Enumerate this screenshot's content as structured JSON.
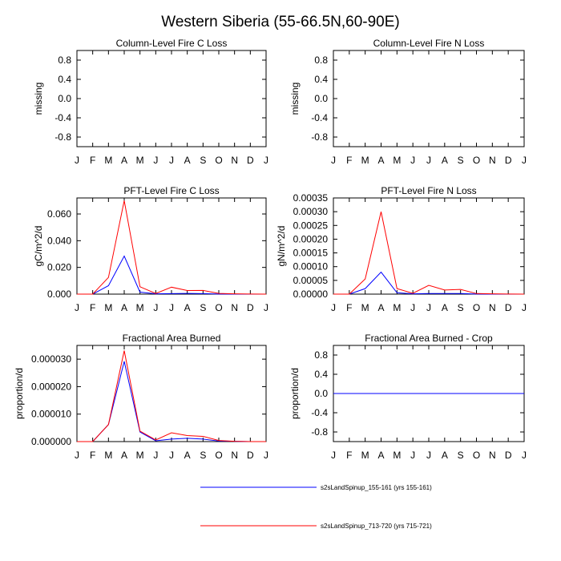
{
  "figure": {
    "title": "Western Siberia (55-66.5N,60-90E)",
    "month_labels": [
      "J",
      "F",
      "M",
      "A",
      "M",
      "J",
      "J",
      "A",
      "S",
      "O",
      "N",
      "D",
      "J"
    ]
  },
  "legend": [
    {
      "label": "s2sLandSpinup_155-161 (yrs 155-161)",
      "color": "#0000ff"
    },
    {
      "label": "s2sLandSpinup_713-720 (yrs 715-721)",
      "color": "#ff0000"
    }
  ],
  "chart_data": [
    {
      "type": "line",
      "title": "Column-Level Fire C Loss",
      "ylabel": "missing",
      "ylim": [
        -1,
        1
      ],
      "yticks": [
        -0.8,
        -0.4,
        0.0,
        0.4,
        0.8
      ],
      "ytick_labels": [
        "-0.8",
        "-0.4",
        "0.0",
        "0.4",
        "0.8"
      ],
      "x": [
        1,
        2,
        3,
        4,
        5,
        6,
        7,
        8,
        9,
        10,
        11,
        12,
        13
      ],
      "series": []
    },
    {
      "type": "line",
      "title": "Column-Level Fire N Loss",
      "ylabel": "missing",
      "ylim": [
        -1,
        1
      ],
      "yticks": [
        -0.8,
        -0.4,
        0.0,
        0.4,
        0.8
      ],
      "ytick_labels": [
        "-0.8",
        "-0.4",
        "0.0",
        "0.4",
        "0.8"
      ],
      "x": [
        1,
        2,
        3,
        4,
        5,
        6,
        7,
        8,
        9,
        10,
        11,
        12,
        13
      ],
      "series": []
    },
    {
      "type": "line",
      "title": "PFT-Level Fire C Loss",
      "ylabel": "gC/m^2/d",
      "ylim": [
        0,
        0.072
      ],
      "yticks": [
        0,
        0.02,
        0.04,
        0.06
      ],
      "ytick_labels": [
        "0.000",
        "0.020",
        "0.040",
        "0.060"
      ],
      "x": [
        1,
        2,
        3,
        4,
        5,
        6,
        7,
        8,
        9,
        10,
        11,
        12,
        13
      ],
      "series": [
        {
          "name": "s2sLandSpinup_155-161",
          "color": "#0000ff",
          "values": [
            0,
            0,
            0.0063,
            0.0285,
            0.0015,
            0.0002,
            0.0004,
            0.0005,
            0.0004,
            0.0001,
            0.0,
            0.0,
            0.0
          ]
        },
        {
          "name": "s2sLandSpinup_713-720",
          "color": "#ff0000",
          "values": [
            0,
            0,
            0.0125,
            0.07,
            0.0055,
            0.0005,
            0.0052,
            0.0027,
            0.0028,
            0.0005,
            0.0002,
            0.0001,
            0.0
          ]
        }
      ]
    },
    {
      "type": "line",
      "title": "PFT-Level Fire N Loss",
      "ylabel": "gN/m^2/d",
      "ylim": [
        0,
        0.00035
      ],
      "yticks": [
        0,
        5e-05,
        0.0001,
        0.00015,
        0.0002,
        0.00025,
        0.0003,
        0.00035
      ],
      "ytick_labels": [
        "0.00000",
        "0.00005",
        "0.00010",
        "0.00015",
        "0.00020",
        "0.00025",
        "0.00030",
        "0.00035"
      ],
      "x": [
        1,
        2,
        3,
        4,
        5,
        6,
        7,
        8,
        9,
        10,
        11,
        12,
        13
      ],
      "series": [
        {
          "name": "s2sLandSpinup_155-161",
          "color": "#0000ff",
          "values": [
            0,
            0,
            2e-05,
            8e-05,
            5e-06,
            1e-06,
            2e-06,
            2e-06,
            2e-06,
            5e-07,
            0,
            0,
            0
          ]
        },
        {
          "name": "s2sLandSpinup_713-720",
          "color": "#ff0000",
          "values": [
            0,
            0,
            5.5e-05,
            0.0003,
            2e-05,
            3e-06,
            3.2e-05,
            1.5e-05,
            1.7e-05,
            2e-06,
            1e-06,
            5e-07,
            0
          ]
        }
      ]
    },
    {
      "type": "line",
      "title": "Fractional Area Burned",
      "ylabel": "proportion/d",
      "ylim": [
        0,
        3.5e-05
      ],
      "yticks": [
        0,
        1e-05,
        2e-05,
        3e-05
      ],
      "ytick_labels": [
        "0.000000",
        "0.000010",
        "0.000020",
        "0.000030"
      ],
      "x": [
        1,
        2,
        3,
        4,
        5,
        6,
        7,
        8,
        9,
        10,
        11,
        12,
        13
      ],
      "series": [
        {
          "name": "s2sLandSpinup_155-161",
          "color": "#0000ff",
          "values": [
            0,
            0,
            6.2e-06,
            2.92e-05,
            3.5e-06,
            3e-07,
            9e-07,
            1.2e-06,
            9e-07,
            2e-07,
            1e-07,
            0,
            0
          ]
        },
        {
          "name": "s2sLandSpinup_713-720",
          "color": "#ff0000",
          "values": [
            0,
            0,
            6.2e-06,
            3.31e-05,
            3.8e-06,
            6e-07,
            3.2e-06,
            2.2e-06,
            1.9e-06,
            4e-07,
            1e-07,
            0,
            0
          ]
        }
      ]
    },
    {
      "type": "line",
      "title": "Fractional Area Burned - Crop",
      "ylabel": "proportion/d",
      "ylim": [
        -1,
        1
      ],
      "yticks": [
        -0.8,
        -0.4,
        0.0,
        0.4,
        0.8
      ],
      "ytick_labels": [
        "-0.8",
        "-0.4",
        "0.0",
        "0.4",
        "0.8"
      ],
      "x": [
        1,
        2,
        3,
        4,
        5,
        6,
        7,
        8,
        9,
        10,
        11,
        12,
        13
      ],
      "series": [
        {
          "name": "s2sLandSpinup_713-720",
          "color": "#ff0000",
          "values": [
            0,
            0,
            0,
            0,
            0,
            0,
            0,
            0,
            0,
            0,
            0,
            0,
            0
          ]
        },
        {
          "name": "s2sLandSpinup_155-161",
          "color": "#0000ff",
          "values": [
            0,
            0,
            0,
            0,
            0,
            0,
            0,
            0,
            0,
            0,
            0,
            0,
            0
          ]
        }
      ]
    }
  ]
}
